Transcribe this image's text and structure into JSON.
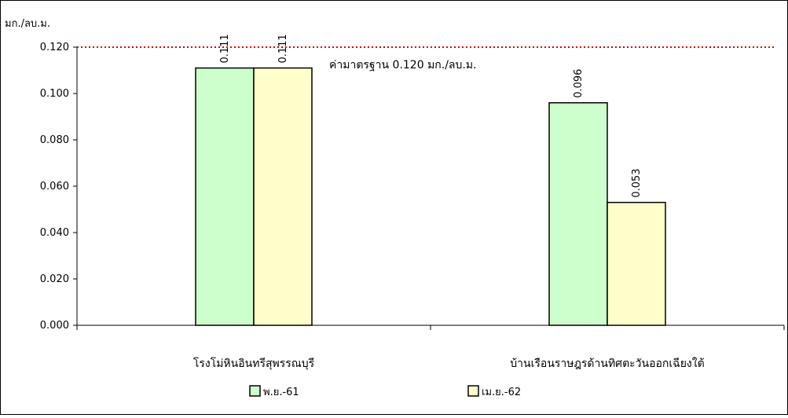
{
  "chart_data": {
    "type": "bar",
    "title": "",
    "ylabel": "มก./ลบ.ม.",
    "xlabel": "",
    "categories": [
      "โรงโม่หินอินทรีสุพรรณบุรี",
      "บ้านเรือนราษฎรด้านทิศตะวันออกเฉียงใต้"
    ],
    "series": [
      {
        "name": "พ.ย.-61",
        "values": [
          0.111,
          0.096
        ],
        "color": "#ccffcc"
      },
      {
        "name": "เม.ย.-62",
        "values": [
          0.111,
          0.053
        ],
        "color": "#ffffcc"
      }
    ],
    "data_labels": [
      [
        "0.111",
        "0.096"
      ],
      [
        "0.111",
        "0.053"
      ]
    ],
    "ylim": [
      0,
      0.12
    ],
    "yticks": [
      "0.000",
      "0.020",
      "0.040",
      "0.060",
      "0.080",
      "0.100",
      "0.120"
    ],
    "reference_line": {
      "value": 0.12,
      "label": "ค่ามาตรฐาน 0.120 มก./ลบ.ม.",
      "color": "#e00000",
      "style": "dotted"
    },
    "grid": false,
    "legend_position": "bottom"
  }
}
